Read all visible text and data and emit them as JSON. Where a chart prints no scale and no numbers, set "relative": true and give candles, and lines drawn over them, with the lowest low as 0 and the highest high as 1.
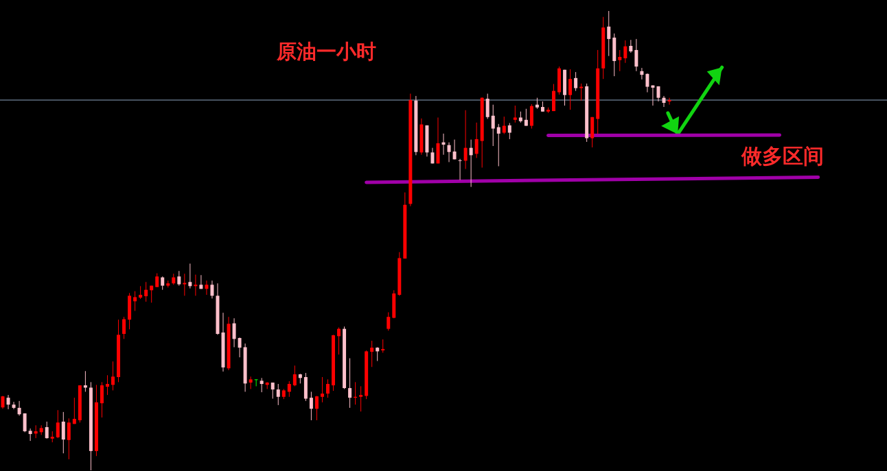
{
  "chart_data": {
    "type": "candlestick",
    "relative": true,
    "title": "原油一小时",
    "annotations": [
      "做多区间"
    ],
    "categories": [
      null,
      null,
      null,
      null,
      null,
      null,
      null,
      null,
      null,
      null,
      null,
      null,
      null,
      null,
      null,
      null,
      null,
      null,
      null,
      null,
      null,
      null,
      null,
      null,
      null,
      null,
      null,
      null,
      null,
      null,
      null,
      null,
      null,
      null,
      null,
      null,
      null,
      null,
      null,
      null,
      null,
      null,
      null,
      null,
      null,
      null,
      null,
      null,
      null,
      null,
      null,
      null,
      null,
      null,
      null,
      null,
      null,
      null,
      null,
      null,
      null,
      null,
      null,
      null,
      null,
      null,
      null,
      null,
      null,
      null,
      null,
      null,
      null,
      null,
      null,
      null,
      null,
      null,
      null,
      null,
      null,
      null,
      null,
      null,
      null,
      null,
      null,
      null,
      null,
      null,
      null,
      null,
      null,
      null,
      null,
      null,
      null,
      null,
      null,
      null,
      null,
      null,
      null,
      null,
      null,
      null,
      null,
      null,
      null,
      null,
      null,
      null,
      null,
      null,
      null,
      null,
      null,
      null,
      null,
      null,
      null,
      null,
      null,
      null,
      null,
      null,
      null,
      null,
      null,
      null,
      null,
      null,
      null,
      null,
      null,
      null,
      null,
      null,
      null,
      null,
      null,
      null,
      null,
      null,
      null,
      null,
      null,
      null,
      null,
      null,
      null,
      null,
      null,
      null,
      null,
      null,
      null,
      null,
      null,
      null,
      null
    ],
    "ohlc": [
      [
        0.137,
        0.162,
        0.134,
        0.161
      ],
      [
        0.158,
        0.164,
        0.133,
        0.143
      ],
      [
        0.143,
        0.149,
        0.133,
        0.136
      ],
      [
        0.136,
        0.151,
        0.119,
        0.122
      ],
      [
        0.124,
        0.124,
        0.083,
        0.085
      ],
      [
        0.086,
        0.091,
        0.064,
        0.079
      ],
      [
        0.08,
        0.098,
        0.07,
        0.085
      ],
      [
        0.083,
        0.098,
        0.077,
        0.092
      ],
      [
        0.094,
        0.106,
        0.069,
        0.07
      ],
      [
        0.069,
        0.085,
        0.061,
        0.073
      ],
      [
        0.072,
        0.131,
        0.07,
        0.104
      ],
      [
        0.106,
        0.127,
        0.037,
        0.067
      ],
      [
        0.066,
        0.113,
        0.024,
        0.104
      ],
      [
        0.101,
        0.158,
        0.101,
        0.112
      ],
      [
        0.109,
        0.185,
        0.104,
        0.185
      ],
      [
        0.185,
        0.216,
        0.171,
        0.18
      ],
      [
        0.18,
        0.192,
        0,
        0.042
      ],
      [
        0.042,
        0.186,
        0.031,
        0.148
      ],
      [
        0.146,
        0.192,
        0.115,
        0.185
      ],
      [
        0.182,
        0.207,
        0.164,
        0.188
      ],
      [
        0.186,
        0.237,
        0.174,
        0.204
      ],
      [
        0.203,
        0.328,
        0.192,
        0.295
      ],
      [
        0.297,
        0.334,
        0.286,
        0.329
      ],
      [
        0.328,
        0.386,
        0.307,
        0.38
      ],
      [
        0.368,
        0.39,
        0.347,
        0.377
      ],
      [
        0.376,
        0.401,
        0.373,
        0.382
      ],
      [
        0.379,
        0.41,
        0.367,
        0.393
      ],
      [
        0.392,
        0.402,
        0.365,
        0.402
      ],
      [
        0.399,
        0.429,
        0.399,
        0.422
      ],
      [
        0.42,
        0.422,
        0.393,
        0.402
      ],
      [
        0.402,
        0.413,
        0.398,
        0.407
      ],
      [
        0.407,
        0.428,
        0.404,
        0.42
      ],
      [
        0.422,
        0.434,
        0.402,
        0.405
      ],
      [
        0.405,
        0.428,
        0.38,
        0.408
      ],
      [
        0.41,
        0.45,
        0.396,
        0.401
      ],
      [
        0.401,
        0.426,
        0.38,
        0.404
      ],
      [
        0.404,
        0.425,
        0.395,
        0.395
      ],
      [
        0.395,
        0.413,
        0.382,
        0.404
      ],
      [
        0.404,
        0.413,
        0.374,
        0.38
      ],
      [
        0.38,
        0.407,
        0.295,
        0.297
      ],
      [
        0.3,
        0.343,
        0.215,
        0.224
      ],
      [
        0.222,
        0.334,
        0.218,
        0.319
      ],
      [
        0.32,
        0.331,
        0.268,
        0.286
      ],
      [
        0.288,
        0.289,
        0.246,
        0.267
      ],
      [
        0.268,
        0.276,
        0.171,
        0.189
      ],
      [
        0.191,
        0.204,
        0.177,
        0.198
      ],
      [
        0.198,
        0.198,
        0.183,
        0.198
      ],
      [
        0.195,
        0.201,
        0.17,
        0.188
      ],
      [
        0.186,
        0.192,
        0.177,
        0.191
      ],
      [
        0.191,
        0.191,
        0.156,
        0.176
      ],
      [
        0.176,
        0.188,
        0.142,
        0.16
      ],
      [
        0.16,
        0.177,
        0.155,
        0.174
      ],
      [
        0.171,
        0.194,
        0.16,
        0.188
      ],
      [
        0.185,
        0.228,
        0.183,
        0.209
      ],
      [
        0.209,
        0.21,
        0.189,
        0.201
      ],
      [
        0.203,
        0.212,
        0.151,
        0.156
      ],
      [
        0.158,
        0.171,
        0.109,
        0.134
      ],
      [
        0.134,
        0.162,
        0.109,
        0.161
      ],
      [
        0.16,
        0.203,
        0.148,
        0.167
      ],
      [
        0.167,
        0.198,
        0.158,
        0.188
      ],
      [
        0.185,
        0.295,
        0.173,
        0.294
      ],
      [
        0.292,
        0.311,
        0.252,
        0.308
      ],
      [
        0.308,
        0.313,
        0.177,
        0.179
      ],
      [
        0.179,
        0.244,
        0.136,
        0.158
      ],
      [
        0.158,
        0.192,
        0.143,
        0.16
      ],
      [
        0.16,
        0.183,
        0.128,
        0.164
      ],
      [
        0.162,
        0.261,
        0.155,
        0.259
      ],
      [
        0.258,
        0.282,
        0.225,
        0.267
      ],
      [
        0.267,
        0.268,
        0.238,
        0.259
      ],
      [
        0.261,
        0.285,
        0.256,
        0.264
      ],
      [
        0.308,
        0.344,
        0.304,
        0.334
      ],
      [
        0.332,
        0.392,
        0.331,
        0.385
      ],
      [
        0.382,
        0.475,
        0.38,
        0.462
      ],
      [
        0.461,
        0.605,
        0.461,
        0.578
      ],
      [
        0.58,
        0.82,
        0.575,
        0.806
      ],
      [
        0.805,
        0.815,
        0.686,
        0.693
      ],
      [
        0.692,
        0.766,
        0.687,
        0.753
      ],
      [
        0.751,
        0.751,
        0.683,
        0.692
      ],
      [
        0.692,
        0.702,
        0.668,
        0.668
      ],
      [
        0.668,
        0.768,
        0.668,
        0.712
      ],
      [
        0.714,
        0.733,
        0.687,
        0.709
      ],
      [
        0.708,
        0.714,
        0.671,
        0.693
      ],
      [
        0.694,
        0.72,
        0.677,
        0.677
      ],
      [
        0.675,
        0.678,
        0.632,
        0.674
      ],
      [
        0.674,
        0.784,
        0.656,
        0.702
      ],
      [
        0.702,
        0.72,
        0.617,
        0.686
      ],
      [
        0.689,
        0.757,
        0.68,
        0.721
      ],
      [
        0.717,
        0.812,
        0.659,
        0.811
      ],
      [
        0.809,
        0.82,
        0.765,
        0.769
      ],
      [
        0.772,
        0.796,
        0.706,
        0.744
      ],
      [
        0.747,
        0.754,
        0.662,
        0.733
      ],
      [
        0.735,
        0.77,
        0.732,
        0.75
      ],
      [
        0.751,
        0.756,
        0.721,
        0.735
      ],
      [
        0.763,
        0.794,
        0.757,
        0.768
      ],
      [
        0.768,
        0.781,
        0.757,
        0.76
      ],
      [
        0.763,
        0.787,
        0.75,
        0.75
      ],
      [
        0.75,
        0.797,
        0.744,
        0.793
      ],
      [
        0.796,
        0.811,
        0.787,
        0.79
      ],
      [
        0.791,
        0.803,
        0.781,
        0.781
      ],
      [
        0.781,
        0.79,
        0.778,
        0.785
      ],
      [
        0.782,
        0.841,
        0.782,
        0.826
      ],
      [
        0.823,
        0.879,
        0.818,
        0.875
      ],
      [
        0.872,
        0.872,
        0.794,
        0.817
      ],
      [
        0.817,
        0.873,
        0.785,
        0.852
      ],
      [
        0.854,
        0.867,
        0.826,
        0.832
      ],
      [
        0.832,
        0.842,
        0.805,
        0.835
      ],
      [
        0.836,
        0.842,
        0.715,
        0.723
      ],
      [
        0.723,
        0.769,
        0.703,
        0.769
      ],
      [
        0.765,
        0.915,
        0.732,
        0.875
      ],
      [
        0.875,
        0.987,
        0.852,
        0.964
      ],
      [
        0.966,
        1,
        0.902,
        0.939
      ],
      [
        0.942,
        0.951,
        0.858,
        0.891
      ],
      [
        0.893,
        0.915,
        0.869,
        0.9
      ],
      [
        0.897,
        0.936,
        0.887,
        0.923
      ],
      [
        0.924,
        0.937,
        0.909,
        0.912
      ],
      [
        0.915,
        0.939,
        0.869,
        0.879
      ],
      [
        0.869,
        0.876,
        0.851,
        0.861
      ],
      [
        0.863,
        0.864,
        0.823,
        0.835
      ],
      [
        0.838,
        0.838,
        0.794,
        0.833
      ],
      [
        0.836,
        0.836,
        0.803,
        0.811
      ],
      [
        0.811,
        0.815,
        0.791,
        0.8
      ],
      [
        0.803,
        0.811,
        0.796,
        0.806
      ],
      null,
      null,
      null,
      null,
      null,
      null,
      null,
      null,
      null,
      null,
      null,
      null,
      null,
      null,
      null,
      null,
      null,
      null,
      null,
      null,
      null,
      null,
      null,
      null,
      null,
      null,
      null,
      null,
      null,
      null,
      null,
      null,
      null,
      null,
      null,
      null,
      null,
      null,
      null
    ],
    "colors": [
      "#ff0000",
      "#ffc0cb",
      "#ffc0cb",
      "#ffc0cb",
      "#ffc0cb",
      "#ffc0cb",
      "#ff0000",
      "#ff0000",
      "#ffc0cb",
      "#ff0000",
      "#ff0000",
      "#ffc0cb",
      "#ff0000",
      "#ff0000",
      "#ff0000",
      "#ffc0cb",
      "#ffc0cb",
      "#ff0000",
      "#ff0000",
      "#ff0000",
      "#ff0000",
      "#ff0000",
      "#ff0000",
      "#ff0000",
      "#ff0000",
      "#ff0000",
      "#ff0000",
      "#ff0000",
      "#ff0000",
      "#ffc0cb",
      "#ff0000",
      "#ff0000",
      "#ffc0cb",
      "#ff0000",
      "#ffc0cb",
      "#ff0000",
      "#ffc0cb",
      "#ff0000",
      "#ffc0cb",
      "#ffc0cb",
      "#ffc0cb",
      "#ff0000",
      "#ffc0cb",
      "#ffc0cb",
      "#ffc0cb",
      "#ff0000",
      "#00ff00",
      "#ffc0cb",
      "#ff0000",
      "#ffc0cb",
      "#ffc0cb",
      "#ff0000",
      "#ff0000",
      "#ff0000",
      "#ffc0cb",
      "#ffc0cb",
      "#ffc0cb",
      "#ff0000",
      "#ff0000",
      "#ff0000",
      "#ff0000",
      "#ff0000",
      "#ffc0cb",
      "#ffc0cb",
      "#ff0000",
      "#ff0000",
      "#ff0000",
      "#ff0000",
      "#ffc0cb",
      "#ff0000",
      "#ff0000",
      "#ff0000",
      "#ff0000",
      "#ff0000",
      "#ff0000",
      "#ffc0cb",
      "#ff0000",
      "#ffc0cb",
      "#ffc0cb",
      "#ff0000",
      "#ffc0cb",
      "#ffc0cb",
      "#ffc0cb",
      "#ffc0cb",
      "#ff0000",
      "#ffc0cb",
      "#ff0000",
      "#ff0000",
      "#ffc0cb",
      "#ffc0cb",
      "#ffc0cb",
      "#ff0000",
      "#ffc0cb",
      "#ff0000",
      "#ffc0cb",
      "#ffc0cb",
      "#ff0000",
      "#ffc0cb",
      "#ffc0cb",
      "#ff0000",
      "#ff0000",
      "#ff0000",
      "#ffc0cb",
      "#ff0000",
      "#ffc0cb",
      "#ff0000",
      "#ffc0cb",
      "#ff0000",
      "#ff0000",
      "#ff0000",
      "#ffc0cb",
      "#ffc0cb",
      "#ff0000",
      "#ff0000",
      "#ffc0cb",
      "#ffc0cb",
      "#ffc0cb",
      "#ffc0cb",
      "#ffc0cb",
      "#ffc0cb",
      "#ffc0cb",
      "#ff0000",
      null,
      null,
      null,
      null,
      null,
      null,
      null,
      null,
      null,
      null,
      null,
      null,
      null,
      null,
      null,
      null,
      null,
      null,
      null,
      null,
      null,
      null,
      null,
      null,
      null,
      null,
      null,
      null,
      null,
      null,
      null,
      null,
      null,
      null,
      null,
      null,
      null,
      null,
      null
    ],
    "series": [
      {
        "type": "line",
        "color": "#a000a8",
        "values": [
          null,
          null,
          null,
          null,
          null,
          null,
          null,
          null,
          null,
          null,
          null,
          null,
          null,
          null,
          null,
          null,
          null,
          null,
          null,
          null,
          null,
          null,
          null,
          null,
          null,
          null,
          null,
          null,
          null,
          null,
          null,
          null,
          null,
          null,
          null,
          null,
          null,
          null,
          null,
          null,
          null,
          null,
          null,
          null,
          null,
          null,
          null,
          null,
          null,
          null,
          null,
          null,
          null,
          null,
          null,
          null,
          null,
          null,
          null,
          null,
          null,
          null,
          null,
          null,
          null,
          null,
          0.627,
          null,
          null,
          null,
          null,
          null,
          null,
          null,
          null,
          null,
          null,
          null,
          null,
          null,
          null,
          null,
          null,
          null,
          null,
          null,
          null,
          null,
          null,
          null,
          null,
          null,
          null,
          null,
          null,
          null,
          null,
          null,
          null,
          null,
          null,
          null,
          null,
          null,
          null,
          null,
          null,
          null,
          null,
          null,
          null,
          null,
          null,
          null,
          null,
          null,
          null,
          null,
          null,
          null,
          null,
          null,
          null,
          null,
          null,
          null,
          null,
          null,
          null,
          null,
          null,
          null,
          null,
          null,
          null,
          null,
          null,
          null,
          null,
          null,
          null,
          null,
          null,
          null,
          null,
          null,
          null,
          null,
          0.638,
          null,
          null,
          null,
          null,
          null,
          null,
          null,
          null,
          null,
          null,
          null,
          null
        ]
      },
      {
        "type": "line",
        "color": "#a000a8",
        "values": [
          null,
          null,
          null,
          null,
          null,
          null,
          null,
          null,
          null,
          null,
          null,
          null,
          null,
          null,
          null,
          null,
          null,
          null,
          null,
          null,
          null,
          null,
          null,
          null,
          null,
          null,
          null,
          null,
          null,
          null,
          null,
          null,
          null,
          null,
          null,
          null,
          null,
          null,
          null,
          null,
          null,
          null,
          null,
          null,
          null,
          null,
          null,
          null,
          null,
          null,
          null,
          null,
          null,
          null,
          null,
          null,
          null,
          null,
          null,
          null,
          null,
          null,
          null,
          null,
          null,
          null,
          null,
          null,
          null,
          null,
          null,
          null,
          null,
          null,
          null,
          null,
          null,
          null,
          null,
          null,
          null,
          null,
          null,
          null,
          null,
          null,
          null,
          null,
          null,
          null,
          null,
          null,
          null,
          null,
          null,
          null,
          null,
          null,
          null,
          0.729,
          null,
          null,
          null,
          null,
          null,
          null,
          null,
          null,
          null,
          null,
          null,
          null,
          null,
          null,
          null,
          null,
          null,
          null,
          null,
          null,
          null,
          null,
          null,
          null,
          null,
          null,
          null,
          null,
          null,
          null,
          null,
          null,
          null,
          null,
          null,
          null,
          null,
          null,
          null,
          null,
          null,
          0.73,
          null,
          null,
          null,
          null,
          null,
          null,
          null,
          null,
          null,
          null,
          null,
          null,
          null,
          null,
          null,
          null,
          null,
          null,
          null
        ]
      }
    ],
    "ref_lines": [
      {
        "axis": "y",
        "value": 0.806,
        "color": "#8fa7c0"
      }
    ]
  }
}
